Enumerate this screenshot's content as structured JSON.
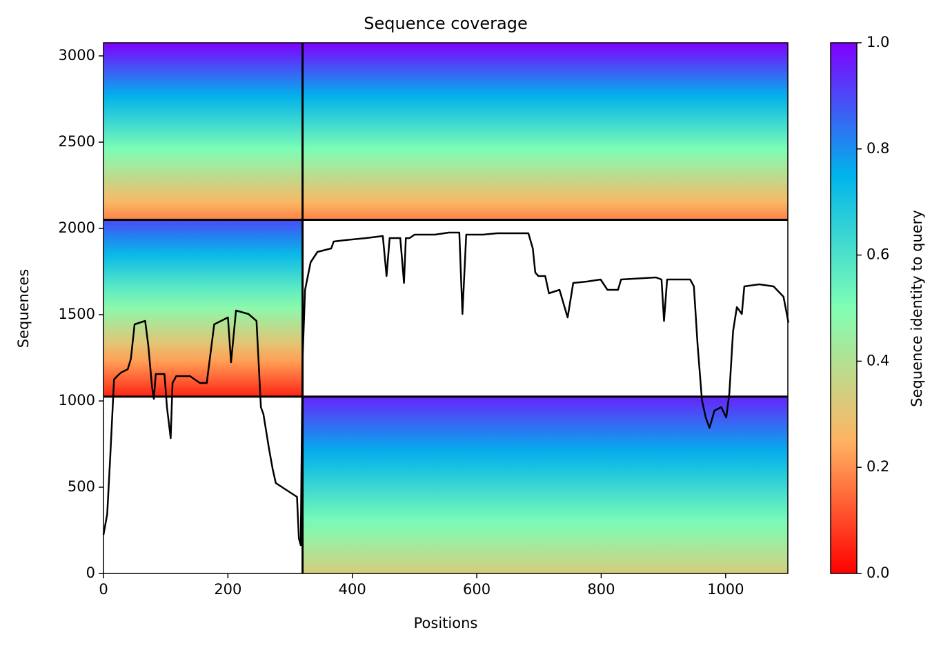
{
  "chart_data": {
    "type": "msa_coverage",
    "title": "Sequence coverage",
    "xlabel": "Positions",
    "ylabel": "Sequences",
    "xlim": [
      0,
      1100
    ],
    "ylim": [
      0,
      3076
    ],
    "xticks": [
      0,
      200,
      400,
      600,
      800,
      1000
    ],
    "yticks": [
      0,
      500,
      1000,
      1500,
      2000,
      2500,
      3000
    ],
    "colorbar": {
      "label": "Sequence identity to query",
      "lim": [
        0,
        1
      ],
      "ticks": [
        {
          "value": 0,
          "label": "0.0"
        },
        0.2,
        0.4,
        0.6,
        0.8,
        {
          "value": 1,
          "label": "1.0"
        }
      ],
      "colors": [
        "#ff0000",
        "#ffb462",
        "#80ffb4",
        "#00b4eb",
        "#8000ff"
      ]
    },
    "blocks": [
      {
        "x": [
          0,
          1100
        ],
        "y": [
          2050,
          3076
        ],
        "identity": [
          1.0,
          0.18
        ]
      },
      {
        "x": [
          0,
          320
        ],
        "y": [
          1025,
          2050
        ],
        "identity": [
          0.9,
          0.05
        ]
      },
      {
        "x": [
          320,
          1100
        ],
        "y": [
          0,
          1025
        ],
        "identity": [
          0.95,
          0.33
        ]
      }
    ],
    "dividers_x": [
      320
    ],
    "dividers_y": [
      1025,
      2050
    ],
    "coverage": {
      "color": "#000000",
      "x": [
        0,
        6,
        11,
        17,
        22,
        28,
        39,
        44,
        50,
        67,
        72,
        78,
        81,
        84,
        98,
        102,
        108,
        111,
        117,
        139,
        155,
        166,
        178,
        200,
        205,
        213,
        233,
        246,
        253,
        257,
        266,
        272,
        277,
        294,
        311,
        314,
        317,
        320,
        324,
        333,
        344,
        366,
        370,
        388,
        422,
        449,
        455,
        460,
        477,
        483,
        486,
        492,
        500,
        533,
        555,
        572,
        577,
        583,
        610,
        633,
        683,
        690,
        694,
        699,
        710,
        716,
        733,
        746,
        755,
        777,
        799,
        810,
        827,
        832,
        888,
        897,
        901,
        906,
        943,
        949,
        955,
        962,
        968,
        974,
        982,
        993,
        1001,
        1006,
        1012,
        1018,
        1026,
        1030,
        1054,
        1077,
        1093,
        1101
      ],
      "values": [
        224,
        344,
        684,
        1124,
        1144,
        1164,
        1184,
        1244,
        1444,
        1464,
        1324,
        1084,
        1012,
        1156,
        1156,
        964,
        784,
        1104,
        1144,
        1144,
        1104,
        1104,
        1444,
        1484,
        1224,
        1524,
        1504,
        1464,
        964,
        924,
        724,
        604,
        524,
        484,
        444,
        204,
        164,
        1244,
        1644,
        1804,
        1864,
        1884,
        1924,
        1932,
        1944,
        1956,
        1724,
        1944,
        1944,
        1684,
        1944,
        1944,
        1964,
        1964,
        1976,
        1976,
        1504,
        1964,
        1964,
        1972,
        1972,
        1884,
        1744,
        1724,
        1724,
        1624,
        1644,
        1484,
        1684,
        1692,
        1704,
        1644,
        1644,
        1704,
        1716,
        1704,
        1464,
        1704,
        1704,
        1664,
        1324,
        1004,
        904,
        844,
        944,
        964,
        904,
        1044,
        1404,
        1544,
        1504,
        1664,
        1676,
        1664,
        1604,
        1454
      ]
    }
  }
}
